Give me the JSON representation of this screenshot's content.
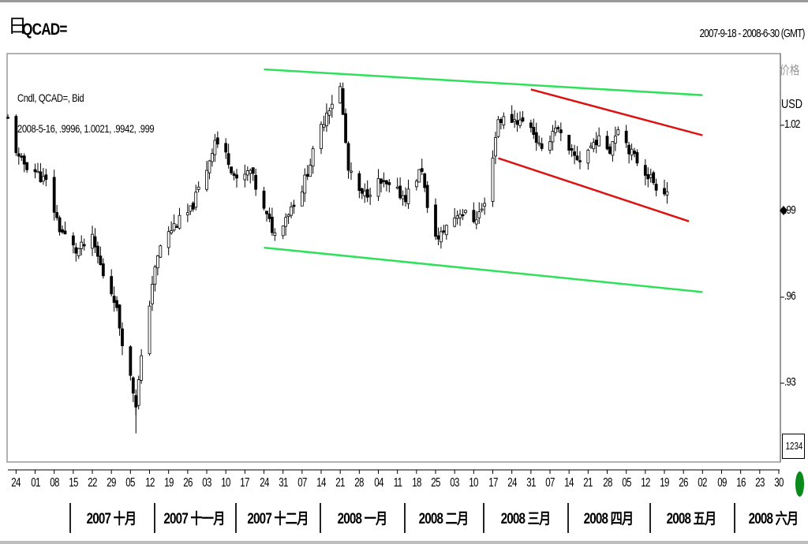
{
  "header": {
    "symbol_icon": "日",
    "symbol": "QCAD=",
    "date_range": "2007-9-18 - 2008-6-30 (GMT)"
  },
  "info": {
    "line1": "Cndl, QCAD=, Bid",
    "line2": "2008-5-16, .9996, 1.0021, .9942, .999"
  },
  "axis": {
    "price_label": "价格",
    "currency": "USD",
    "zoom_value": "1234"
  },
  "colors": {
    "candle": "#000000",
    "green_channel": "#2ee05a",
    "red_channel": "#dd1111",
    "border": "#999999",
    "scroll_indicator": "#0a8a1a"
  },
  "chart_data": {
    "type": "candlestick",
    "title": "QCAD=",
    "ylabel": "USD",
    "ylim": [
      0.9025,
      1.045
    ],
    "y_ticks": [
      {
        "value": 1.02,
        "label": "1.02"
      },
      {
        "value": 0.99,
        "label": ".99"
      },
      {
        "value": 0.96,
        "label": ".96"
      },
      {
        "value": 0.93,
        "label": ".93"
      }
    ],
    "x_range": [
      "2007-09-21",
      "2008-06-30"
    ],
    "x_ticks": [
      {
        "date": "2007-09-24",
        "label": "24"
      },
      {
        "date": "2007-10-01",
        "label": "01"
      },
      {
        "date": "2007-10-08",
        "label": "08"
      },
      {
        "date": "2007-10-15",
        "label": "15"
      },
      {
        "date": "2007-10-22",
        "label": "22"
      },
      {
        "date": "2007-10-29",
        "label": "29"
      },
      {
        "date": "2007-11-05",
        "label": "05"
      },
      {
        "date": "2007-11-12",
        "label": "12"
      },
      {
        "date": "2007-11-19",
        "label": "19"
      },
      {
        "date": "2007-11-26",
        "label": "26"
      },
      {
        "date": "2007-12-03",
        "label": "03"
      },
      {
        "date": "2007-12-10",
        "label": "10"
      },
      {
        "date": "2007-12-17",
        "label": "17"
      },
      {
        "date": "2007-12-24",
        "label": "24"
      },
      {
        "date": "2007-12-31",
        "label": "31"
      },
      {
        "date": "2008-01-07",
        "label": "07"
      },
      {
        "date": "2008-01-14",
        "label": "14"
      },
      {
        "date": "2008-01-21",
        "label": "21"
      },
      {
        "date": "2008-01-28",
        "label": "28"
      },
      {
        "date": "2008-02-04",
        "label": "04"
      },
      {
        "date": "2008-02-11",
        "label": "11"
      },
      {
        "date": "2008-02-18",
        "label": "18"
      },
      {
        "date": "2008-02-25",
        "label": "25"
      },
      {
        "date": "2008-03-03",
        "label": "03"
      },
      {
        "date": "2008-03-10",
        "label": "10"
      },
      {
        "date": "2008-03-17",
        "label": "17"
      },
      {
        "date": "2008-03-24",
        "label": "24"
      },
      {
        "date": "2008-03-31",
        "label": "31"
      },
      {
        "date": "2008-04-07",
        "label": "07"
      },
      {
        "date": "2008-04-14",
        "label": "14"
      },
      {
        "date": "2008-04-21",
        "label": "21"
      },
      {
        "date": "2008-04-28",
        "label": "28"
      },
      {
        "date": "2008-05-05",
        "label": "05"
      },
      {
        "date": "2008-05-12",
        "label": "12"
      },
      {
        "date": "2008-05-19",
        "label": "19"
      },
      {
        "date": "2008-05-26",
        "label": "26"
      },
      {
        "date": "2008-06-02",
        "label": "02"
      },
      {
        "date": "2008-06-09",
        "label": "09"
      },
      {
        "date": "2008-06-16",
        "label": "16"
      },
      {
        "date": "2008-06-23",
        "label": "23"
      },
      {
        "date": "2008-06-30",
        "label": "30"
      }
    ],
    "months": [
      {
        "start": "2007-10-01",
        "label": "2007 十月"
      },
      {
        "start": "2007-11-01",
        "label": "2007 十一月"
      },
      {
        "start": "2007-12-01",
        "label": "2007 十二月"
      },
      {
        "start": "2008-01-01",
        "label": "2008 一月"
      },
      {
        "start": "2008-02-01",
        "label": "2008 二月"
      },
      {
        "start": "2008-03-01",
        "label": "2008 三月"
      },
      {
        "start": "2008-04-01",
        "label": "2008 四月"
      },
      {
        "start": "2008-05-01",
        "label": "2008 五月"
      },
      {
        "start": "2008-06-01",
        "label": "2008 六月"
      }
    ],
    "trend_lines": [
      {
        "color": "green",
        "from": [
          "2007-12-24",
          1.0395
        ],
        "to": [
          "2008-06-02",
          1.0305
        ]
      },
      {
        "color": "green",
        "from": [
          "2007-12-24",
          0.9773
        ],
        "to": [
          "2008-06-02",
          0.9618
        ]
      },
      {
        "color": "red",
        "from": [
          "2008-03-31",
          1.0325
        ],
        "to": [
          "2008-06-02",
          1.0165
        ]
      },
      {
        "color": "red",
        "from": [
          "2008-03-19",
          1.0085
        ],
        "to": [
          "2008-05-28",
          0.9865
        ]
      }
    ],
    "close": [
      {
        "date": "2007-09-21",
        "value": 1.022
      },
      {
        "date": "2007-09-25",
        "value": 1.008
      },
      {
        "date": "2007-10-01",
        "value": 1.004
      },
      {
        "date": "2007-10-05",
        "value": 1.0
      },
      {
        "date": "2007-10-10",
        "value": 0.984
      },
      {
        "date": "2007-10-16",
        "value": 0.976
      },
      {
        "date": "2007-10-22",
        "value": 0.98
      },
      {
        "date": "2007-10-26",
        "value": 0.968
      },
      {
        "date": "2007-10-30",
        "value": 0.96
      },
      {
        "date": "2007-11-02",
        "value": 0.945
      },
      {
        "date": "2007-11-07",
        "value": 0.923
      },
      {
        "date": "2007-11-09",
        "value": 0.938
      },
      {
        "date": "2007-11-13",
        "value": 0.965
      },
      {
        "date": "2007-11-16",
        "value": 0.978
      },
      {
        "date": "2007-11-21",
        "value": 0.985
      },
      {
        "date": "2007-11-27",
        "value": 0.99
      },
      {
        "date": "2007-12-03",
        "value": 1.005
      },
      {
        "date": "2007-12-06",
        "value": 1.015
      },
      {
        "date": "2007-12-11",
        "value": 1.008
      },
      {
        "date": "2007-12-14",
        "value": 1.0
      },
      {
        "date": "2007-12-19",
        "value": 1.004
      },
      {
        "date": "2007-12-24",
        "value": 0.99
      },
      {
        "date": "2007-12-28",
        "value": 0.982
      },
      {
        "date": "2008-01-02",
        "value": 0.99
      },
      {
        "date": "2008-01-07",
        "value": 0.998
      },
      {
        "date": "2008-01-11",
        "value": 1.01
      },
      {
        "date": "2008-01-16",
        "value": 1.025
      },
      {
        "date": "2008-01-21",
        "value": 1.033
      },
      {
        "date": "2008-01-24",
        "value": 1.004
      },
      {
        "date": "2008-01-29",
        "value": 0.995
      },
      {
        "date": "2008-02-04",
        "value": 1.0
      },
      {
        "date": "2008-02-08",
        "value": 0.998
      },
      {
        "date": "2008-02-14",
        "value": 0.995
      },
      {
        "date": "2008-02-20",
        "value": 1.005
      },
      {
        "date": "2008-02-22",
        "value": 0.99
      },
      {
        "date": "2008-02-26",
        "value": 0.98
      },
      {
        "date": "2008-02-29",
        "value": 0.985
      },
      {
        "date": "2008-03-05",
        "value": 0.99
      },
      {
        "date": "2008-03-10",
        "value": 0.987
      },
      {
        "date": "2008-03-14",
        "value": 0.992
      },
      {
        "date": "2008-03-19",
        "value": 1.022
      },
      {
        "date": "2008-03-25",
        "value": 1.022
      },
      {
        "date": "2008-03-31",
        "value": 1.02
      },
      {
        "date": "2008-04-04",
        "value": 1.01
      },
      {
        "date": "2008-04-09",
        "value": 1.02
      },
      {
        "date": "2008-04-14",
        "value": 1.01
      },
      {
        "date": "2008-04-18",
        "value": 1.008
      },
      {
        "date": "2008-04-24",
        "value": 1.015
      },
      {
        "date": "2008-04-29",
        "value": 1.012
      },
      {
        "date": "2008-05-02",
        "value": 1.02
      },
      {
        "date": "2008-05-07",
        "value": 1.01
      },
      {
        "date": "2008-05-12",
        "value": 1.004
      },
      {
        "date": "2008-05-16",
        "value": 0.999
      },
      {
        "date": "2008-05-20",
        "value": 0.997
      }
    ]
  }
}
